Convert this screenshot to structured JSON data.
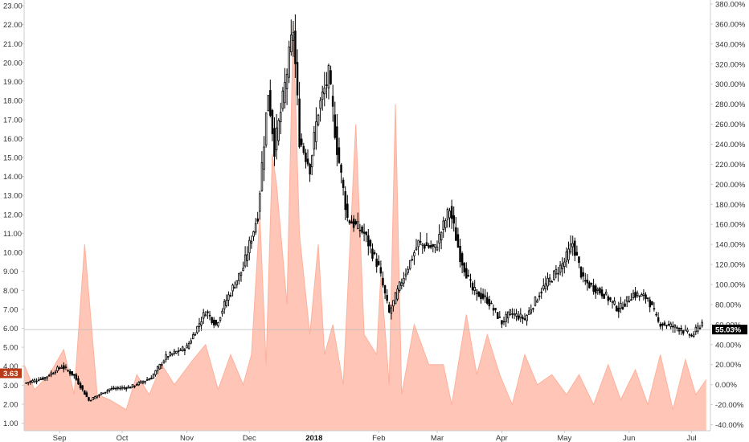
{
  "chart_data": {
    "type": "candlestick_with_area",
    "colors": {
      "background": "#ffffff",
      "area_fill": "#ffc6b7",
      "area_stroke": "#ffb09c",
      "candle": "#000000",
      "grid_line": "#b8b8b8",
      "axis_line": "#cccccc",
      "left_badge": "#b83a17",
      "left_badge_text": "#ffffff",
      "right_badge": "#000000",
      "right_badge_text": "#ffffff"
    },
    "left_axis": {
      "ylim": [
        0.6,
        23.3
      ],
      "ticks": [
        1.0,
        2.0,
        3.0,
        4.0,
        5.0,
        6.0,
        7.0,
        8.0,
        9.0,
        10.0,
        11.0,
        12.0,
        13.0,
        14.0,
        15.0,
        16.0,
        17.0,
        18.0,
        19.0,
        20.0,
        21.0,
        22.0,
        23.0
      ],
      "tick_labels": [
        "1.00",
        "2.00",
        "3.00",
        "4.00",
        "5.00",
        "6.00",
        "7.00",
        "8.00",
        "9.00",
        "10.00",
        "11.00",
        "12.00",
        "13.00",
        "14.00",
        "15.00",
        "16.00",
        "17.00",
        "18.00",
        "19.00",
        "20.00",
        "21.00",
        "22.00",
        "23.00"
      ],
      "current_value": 3.63,
      "current_label": "3.63"
    },
    "right_axis": {
      "ylim": [
        -46.0,
        384.0
      ],
      "ticks": [
        -40,
        -20,
        0,
        20,
        40,
        60,
        80,
        100,
        120,
        140,
        160,
        180,
        200,
        220,
        240,
        260,
        280,
        300,
        320,
        340,
        360,
        380
      ],
      "tick_labels": [
        "-40.00%",
        "-20.00%",
        "0.00%",
        "20.00%",
        "40.00%",
        "60.00%",
        "80.00%",
        "100.00%",
        "120.00%",
        "140.00%",
        "160.00%",
        "180.00%",
        "200.00%",
        "220.00%",
        "240.00%",
        "260.00%",
        "280.00%",
        "300.00%",
        "320.00%",
        "340.00%",
        "360.00%",
        "380.00%"
      ],
      "current_value": 55.03,
      "current_label": "55.03%"
    },
    "reference_line": 55.03,
    "x_axis": {
      "range": [
        "2017-08-15",
        "2018-07-10"
      ],
      "ticks": [
        {
          "date": "2017-09-01",
          "label": "Sep",
          "bold": false
        },
        {
          "date": "2017-10-01",
          "label": "Oct",
          "bold": false
        },
        {
          "date": "2017-11-01",
          "label": "Nov",
          "bold": false
        },
        {
          "date": "2017-12-01",
          "label": "Dec",
          "bold": false
        },
        {
          "date": "2018-01-01",
          "label": "2018",
          "bold": true
        },
        {
          "date": "2018-02-01",
          "label": "Feb",
          "bold": false
        },
        {
          "date": "2018-03-01",
          "label": "Mar",
          "bold": false
        },
        {
          "date": "2018-04-01",
          "label": "Apr",
          "bold": false
        },
        {
          "date": "2018-05-01",
          "label": "May",
          "bold": false
        },
        {
          "date": "2018-06-01",
          "label": "Jun",
          "bold": false
        },
        {
          "date": "2018-07-01",
          "label": "Jul",
          "bold": false
        }
      ]
    },
    "price_keypoints": [
      [
        "2017-08-15",
        3.1
      ],
      [
        "2017-08-25",
        3.4
      ],
      [
        "2017-09-02",
        4.0
      ],
      [
        "2017-09-08",
        3.5
      ],
      [
        "2017-09-15",
        2.2
      ],
      [
        "2017-09-25",
        2.8
      ],
      [
        "2017-10-05",
        2.9
      ],
      [
        "2017-10-15",
        3.4
      ],
      [
        "2017-10-22",
        4.5
      ],
      [
        "2017-11-01",
        5.0
      ],
      [
        "2017-11-10",
        6.9
      ],
      [
        "2017-11-15",
        6.2
      ],
      [
        "2017-11-20",
        7.5
      ],
      [
        "2017-11-28",
        9.2
      ],
      [
        "2017-12-05",
        12.0
      ],
      [
        "2017-12-10",
        18.5
      ],
      [
        "2017-12-13",
        15.5
      ],
      [
        "2017-12-17",
        18.0
      ],
      [
        "2017-12-22",
        21.8
      ],
      [
        "2017-12-25",
        16.0
      ],
      [
        "2017-12-30",
        14.5
      ],
      [
        "2018-01-03",
        17.5
      ],
      [
        "2018-01-08",
        19.3
      ],
      [
        "2018-01-12",
        15.5
      ],
      [
        "2018-01-17",
        11.8
      ],
      [
        "2018-01-25",
        11.0
      ],
      [
        "2018-02-01",
        9.2
      ],
      [
        "2018-02-06",
        6.8
      ],
      [
        "2018-02-12",
        8.5
      ],
      [
        "2018-02-20",
        10.5
      ],
      [
        "2018-02-28",
        10.2
      ],
      [
        "2018-03-07",
        12.3
      ],
      [
        "2018-03-12",
        9.8
      ],
      [
        "2018-03-18",
        8.0
      ],
      [
        "2018-03-25",
        7.5
      ],
      [
        "2018-04-01",
        6.3
      ],
      [
        "2018-04-05",
        6.8
      ],
      [
        "2018-04-12",
        6.5
      ],
      [
        "2018-04-20",
        8.0
      ],
      [
        "2018-05-01",
        9.5
      ],
      [
        "2018-05-05",
        10.5
      ],
      [
        "2018-05-10",
        8.5
      ],
      [
        "2018-05-20",
        7.8
      ],
      [
        "2018-05-27",
        7.0
      ],
      [
        "2018-06-03",
        7.8
      ],
      [
        "2018-06-10",
        7.6
      ],
      [
        "2018-06-15",
        6.3
      ],
      [
        "2018-06-25",
        6.0
      ],
      [
        "2018-07-01",
        5.6
      ],
      [
        "2018-07-06",
        6.3
      ]
    ],
    "area_keypoints": [
      [
        "2017-08-15",
        20
      ],
      [
        "2017-08-20",
        -5
      ],
      [
        "2017-08-27",
        10
      ],
      [
        "2017-09-03",
        35
      ],
      [
        "2017-09-08",
        -10
      ],
      [
        "2017-09-13",
        140
      ],
      [
        "2017-09-19",
        -10
      ],
      [
        "2017-09-25",
        -15
      ],
      [
        "2017-10-03",
        -25
      ],
      [
        "2017-10-08",
        10
      ],
      [
        "2017-10-14",
        -10
      ],
      [
        "2017-10-20",
        20
      ],
      [
        "2017-10-26",
        0
      ],
      [
        "2017-11-04",
        25
      ],
      [
        "2017-11-10",
        40
      ],
      [
        "2017-11-16",
        -5
      ],
      [
        "2017-11-22",
        30
      ],
      [
        "2017-11-28",
        0
      ],
      [
        "2017-12-02",
        30
      ],
      [
        "2017-12-06",
        170
      ],
      [
        "2017-12-09",
        20
      ],
      [
        "2017-12-12",
        230
      ],
      [
        "2017-12-14",
        200
      ],
      [
        "2017-12-19",
        80
      ],
      [
        "2017-12-22",
        360
      ],
      [
        "2017-12-25",
        150
      ],
      [
        "2017-12-30",
        50
      ],
      [
        "2018-01-03",
        140
      ],
      [
        "2018-01-06",
        30
      ],
      [
        "2018-01-10",
        60
      ],
      [
        "2018-01-15",
        0
      ],
      [
        "2018-01-21",
        260
      ],
      [
        "2018-01-25",
        50
      ],
      [
        "2018-01-31",
        30
      ],
      [
        "2018-02-02",
        110
      ],
      [
        "2018-02-06",
        0
      ],
      [
        "2018-02-09",
        280
      ],
      [
        "2018-02-12",
        -10
      ],
      [
        "2018-02-18",
        60
      ],
      [
        "2018-02-25",
        20
      ],
      [
        "2018-03-04",
        20
      ],
      [
        "2018-03-08",
        -20
      ],
      [
        "2018-03-15",
        70
      ],
      [
        "2018-03-20",
        10
      ],
      [
        "2018-03-25",
        50
      ],
      [
        "2018-03-31",
        10
      ],
      [
        "2018-04-06",
        -20
      ],
      [
        "2018-04-12",
        30
      ],
      [
        "2018-04-18",
        0
      ],
      [
        "2018-04-25",
        10
      ],
      [
        "2018-05-02",
        -10
      ],
      [
        "2018-05-08",
        10
      ],
      [
        "2018-05-15",
        -20
      ],
      [
        "2018-05-22",
        20
      ],
      [
        "2018-05-28",
        -15
      ],
      [
        "2018-06-04",
        15
      ],
      [
        "2018-06-10",
        -20
      ],
      [
        "2018-06-16",
        30
      ],
      [
        "2018-06-22",
        -25
      ],
      [
        "2018-06-28",
        25
      ],
      [
        "2018-07-03",
        -10
      ],
      [
        "2018-07-08",
        5
      ]
    ]
  }
}
